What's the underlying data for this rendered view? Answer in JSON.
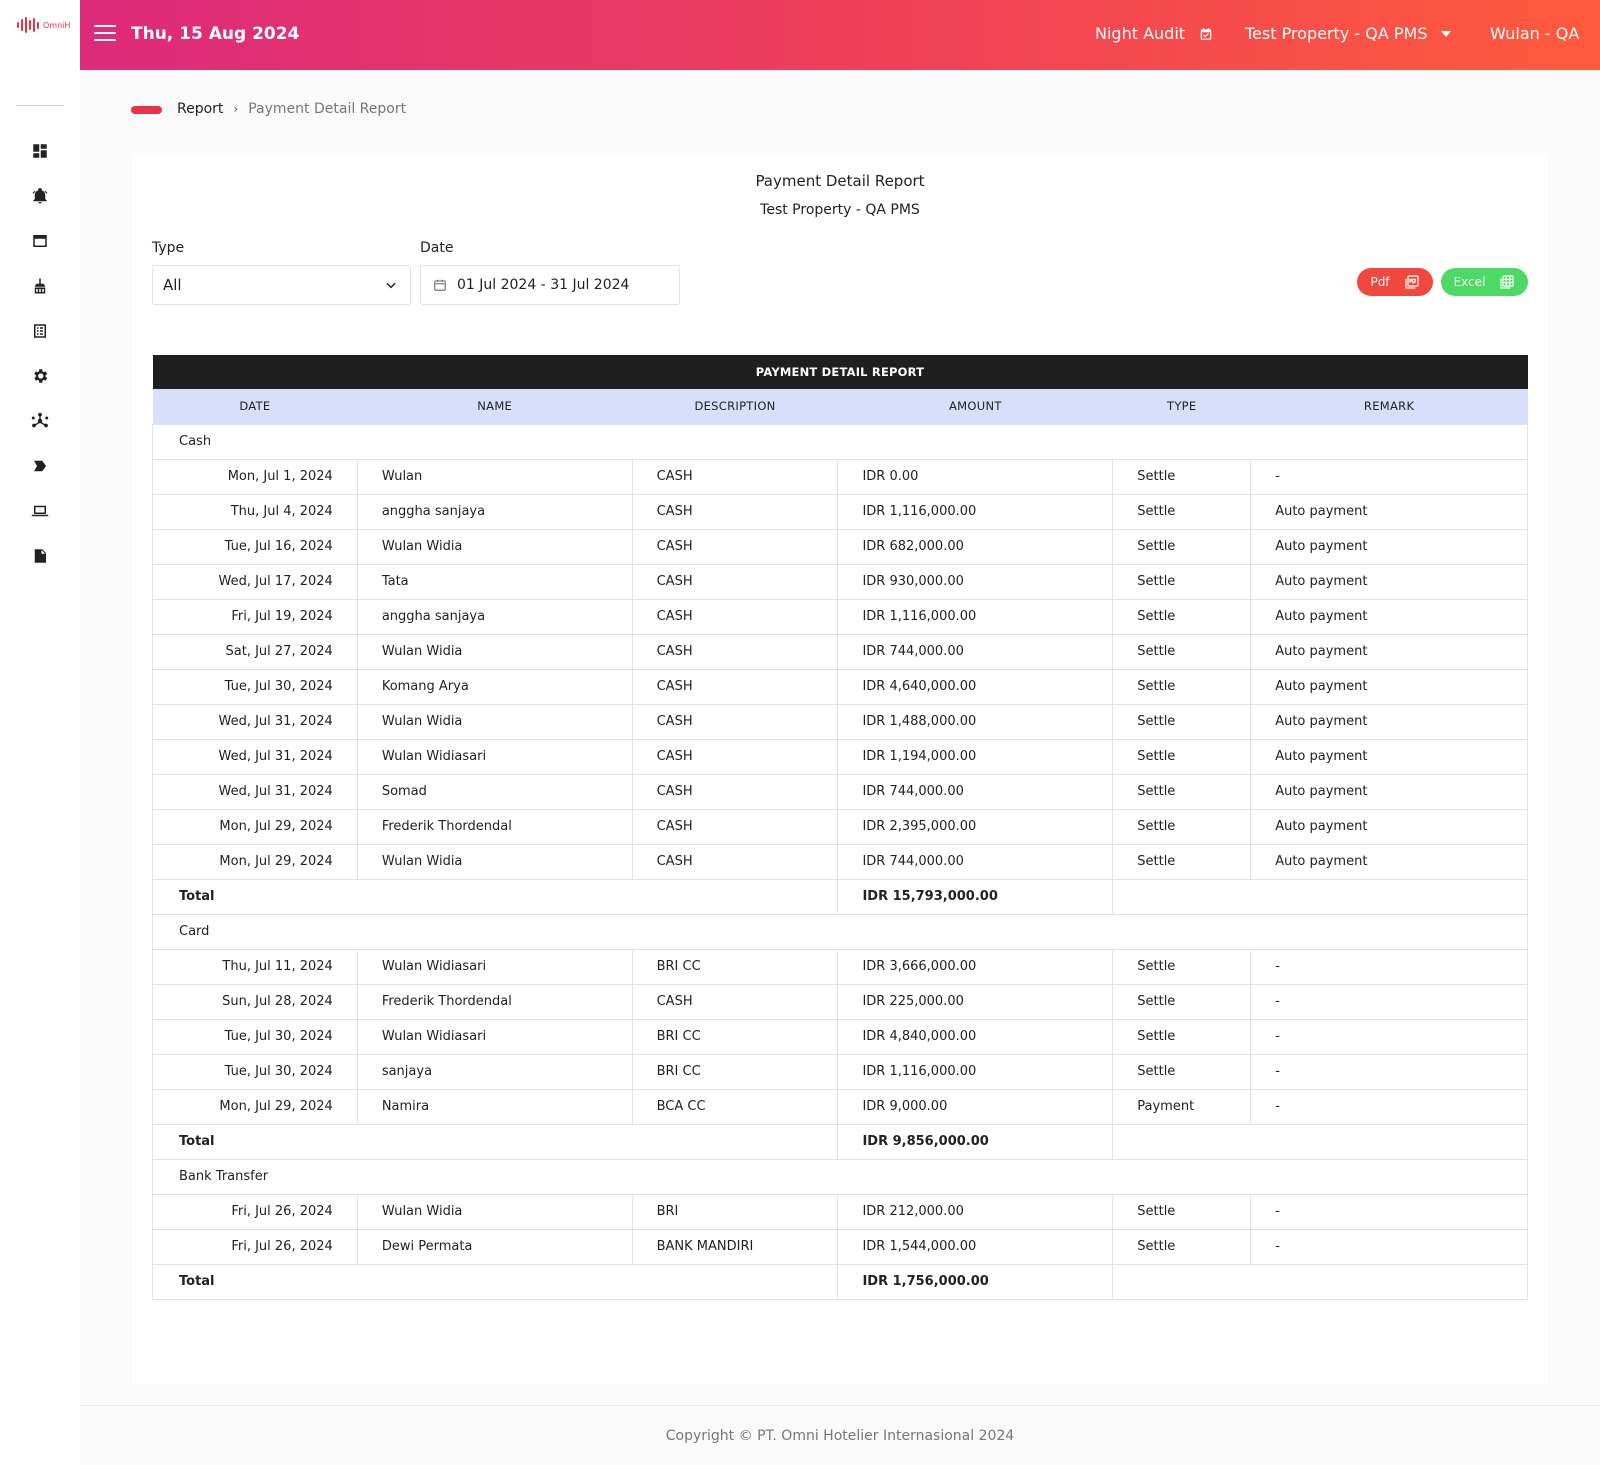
{
  "app": {
    "logo_text": "OmniH"
  },
  "header": {
    "date": "Thu, 15 Aug 2024",
    "night_audit": "Night Audit",
    "property": "Test Property - QA PMS",
    "user": "Wulan - QA"
  },
  "sidebar": {
    "icons": [
      "dashboard-icon",
      "alert-icon",
      "window-icon",
      "housekeeping-icon",
      "list-icon",
      "gear-icon",
      "network-icon",
      "tag-icon",
      "laptop-icon",
      "report-icon"
    ]
  },
  "breadcrumb": {
    "root": "Report",
    "current": "Payment Detail Report"
  },
  "report": {
    "title": "Payment Detail Report",
    "subtitle": "Test Property - QA PMS",
    "filters": {
      "type_label": "Type",
      "type_value": "All",
      "date_label": "Date",
      "date_value": "01 Jul 2024 - 31 Jul 2024"
    },
    "buttons": {
      "pdf": "Pdf",
      "excel": "Excel"
    },
    "table": {
      "caption": "PAYMENT DETAIL REPORT",
      "columns": [
        "DATE",
        "NAME",
        "DESCRIPTION",
        "AMOUNT",
        "TYPE",
        "REMARK"
      ],
      "total_label": "Total",
      "groups": [
        {
          "name": "Cash",
          "rows": [
            {
              "date": "Mon, Jul 1, 2024",
              "name": "Wulan",
              "description": "CASH",
              "amount": "IDR 0.00",
              "type": "Settle",
              "remark": "-"
            },
            {
              "date": "Thu, Jul 4, 2024",
              "name": "anggha sanjaya",
              "description": "CASH",
              "amount": "IDR 1,116,000.00",
              "type": "Settle",
              "remark": "Auto payment"
            },
            {
              "date": "Tue, Jul 16, 2024",
              "name": "Wulan Widia",
              "description": "CASH",
              "amount": "IDR 682,000.00",
              "type": "Settle",
              "remark": "Auto payment"
            },
            {
              "date": "Wed, Jul 17, 2024",
              "name": "Tata",
              "description": "CASH",
              "amount": "IDR 930,000.00",
              "type": "Settle",
              "remark": "Auto payment"
            },
            {
              "date": "Fri, Jul 19, 2024",
              "name": "anggha sanjaya",
              "description": "CASH",
              "amount": "IDR 1,116,000.00",
              "type": "Settle",
              "remark": "Auto payment"
            },
            {
              "date": "Sat, Jul 27, 2024",
              "name": "Wulan Widia",
              "description": "CASH",
              "amount": "IDR 744,000.00",
              "type": "Settle",
              "remark": "Auto payment"
            },
            {
              "date": "Tue, Jul 30, 2024",
              "name": "Komang Arya",
              "description": "CASH",
              "amount": "IDR 4,640,000.00",
              "type": "Settle",
              "remark": "Auto payment"
            },
            {
              "date": "Wed, Jul 31, 2024",
              "name": "Wulan Widia",
              "description": "CASH",
              "amount": "IDR 1,488,000.00",
              "type": "Settle",
              "remark": "Auto payment"
            },
            {
              "date": "Wed, Jul 31, 2024",
              "name": "Wulan Widiasari",
              "description": "CASH",
              "amount": "IDR 1,194,000.00",
              "type": "Settle",
              "remark": "Auto payment"
            },
            {
              "date": "Wed, Jul 31, 2024",
              "name": "Somad",
              "description": "CASH",
              "amount": "IDR 744,000.00",
              "type": "Settle",
              "remark": "Auto payment"
            },
            {
              "date": "Mon, Jul 29, 2024",
              "name": "Frederik Thordendal",
              "description": "CASH",
              "amount": "IDR 2,395,000.00",
              "type": "Settle",
              "remark": "Auto payment"
            },
            {
              "date": "Mon, Jul 29, 2024",
              "name": "Wulan Widia",
              "description": "CASH",
              "amount": "IDR 744,000.00",
              "type": "Settle",
              "remark": "Auto payment"
            }
          ],
          "total": "IDR 15,793,000.00"
        },
        {
          "name": "Card",
          "rows": [
            {
              "date": "Thu, Jul 11, 2024",
              "name": "Wulan Widiasari",
              "description": "BRI CC",
              "amount": "IDR 3,666,000.00",
              "type": "Settle",
              "remark": "-"
            },
            {
              "date": "Sun, Jul 28, 2024",
              "name": "Frederik Thordendal",
              "description": "CASH",
              "amount": "IDR 225,000.00",
              "type": "Settle",
              "remark": "-"
            },
            {
              "date": "Tue, Jul 30, 2024",
              "name": "Wulan Widiasari",
              "description": "BRI CC",
              "amount": "IDR 4,840,000.00",
              "type": "Settle",
              "remark": "-"
            },
            {
              "date": "Tue, Jul 30, 2024",
              "name": "sanjaya",
              "description": "BRI CC",
              "amount": "IDR 1,116,000.00",
              "type": "Settle",
              "remark": "-"
            },
            {
              "date": "Mon, Jul 29, 2024",
              "name": "Namira",
              "description": "BCA CC",
              "amount": "IDR 9,000.00",
              "type": "Payment",
              "remark": "-"
            }
          ],
          "total": "IDR 9,856,000.00"
        },
        {
          "name": "Bank Transfer",
          "rows": [
            {
              "date": "Fri, Jul 26, 2024",
              "name": "Wulan Widia",
              "description": "BRI",
              "amount": "IDR 212,000.00",
              "type": "Settle",
              "remark": "-"
            },
            {
              "date": "Fri, Jul 26, 2024",
              "name": "Dewi Permata",
              "description": "BANK MANDIRI",
              "amount": "IDR 1,544,000.00",
              "type": "Settle",
              "remark": "-"
            }
          ],
          "total": "IDR 1,756,000.00"
        }
      ]
    }
  },
  "footer": {
    "copyright": "Copyright © PT. Omni Hotelier Internasional 2024"
  },
  "colors": {
    "header_start": "#dd2a7b",
    "header_end": "#ff5a3c",
    "accent": "#e8334a",
    "pdf": "#f0473f",
    "excel": "#4cd964",
    "table_head": "#d9defb",
    "table_caption": "#1f1f1f"
  }
}
